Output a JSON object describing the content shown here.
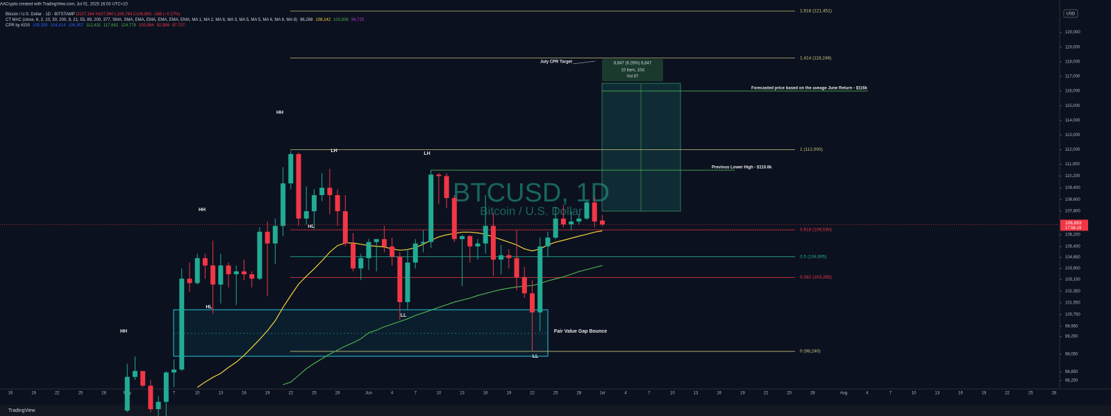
{
  "header": {
    "credit": "AACrypto created with TradingView.com, Jul 01, 2025 16:03 UTC+10",
    "symbol": "Bitcoin / U.S. Dollar · 1D · BITSTAMP",
    "ohlc": "O107,164 H107,560 L106,784 C106,893 −286 (−0.27%)",
    "ct_mac": "CT MAC (close, 6, 2, 10, 30, 200, 9, 21, 55, 89, 200, 377, SMA, SMA, EMA, EMA, EMA, EMA, EMA, MA 1, MA 2, MA 6, MA 3, MA 5, MA 5, MA 6, MA 6, MA 8)",
    "ct_mac_values": [
      {
        "text": "96,288",
        "color": "#d1d4dc"
      },
      {
        "text": "108,142",
        "color": "#f5d53b"
      },
      {
        "text": "103,836",
        "color": "#4caf50"
      },
      {
        "text": "94,725",
        "color": "#b33ad6"
      }
    ],
    "cpr": "CPR by KGS",
    "cpr_values": [
      {
        "text": "105,335",
        "color": "#2962ff"
      },
      {
        "text": "104,414",
        "color": "#2962ff"
      },
      {
        "text": "106,357",
        "color": "#2962ff"
      },
      {
        "text": "112,431",
        "color": "#4caf50"
      },
      {
        "text": "117,682",
        "color": "#4caf50"
      },
      {
        "text": "124,778",
        "color": "#4caf50"
      },
      {
        "text": "100,084",
        "color": "#f23645"
      },
      {
        "text": "92,988",
        "color": "#f23645"
      },
      {
        "text": "87,737",
        "color": "#f23645"
      }
    ],
    "currency": "USD",
    "footer": "TradingView"
  },
  "chart_data": {
    "type": "candlestick",
    "watermark": "BTCUSD, 1D",
    "watermark_sub": "Bitcoin / U.S. Dollar",
    "grid": false,
    "up_color": "#22ab94",
    "down_color": "#f23645",
    "categories": [
      "16",
      null,
      null,
      "19",
      null,
      null,
      "22",
      null,
      null,
      "25",
      null,
      null,
      "28",
      null,
      null,
      "May",
      null,
      null,
      "4",
      null,
      null,
      "7",
      null,
      null,
      "10",
      null,
      null,
      "13",
      null,
      null,
      "16",
      null,
      null,
      "19",
      null,
      null,
      "22",
      null,
      null,
      "25",
      null,
      null,
      "28",
      null,
      null,
      null,
      "Jun",
      null,
      null,
      "4",
      null,
      null,
      "7",
      null,
      null,
      "10",
      null,
      null,
      "13",
      null,
      null,
      "16",
      null,
      null,
      "19",
      null,
      null,
      "22",
      null,
      null,
      "25",
      null,
      null,
      "28",
      null,
      null,
      "Jul",
      null,
      null,
      "4",
      null,
      null,
      "7",
      null,
      null,
      "10",
      null,
      null,
      "13",
      null,
      null,
      "16",
      null,
      null,
      "19",
      null,
      null,
      "22",
      null,
      null,
      "25",
      null,
      null,
      "28",
      null,
      null,
      null,
      "Aug",
      null,
      null,
      "4",
      null,
      null,
      "7",
      null,
      null,
      "10",
      null,
      null,
      "13",
      null,
      null,
      "16",
      null,
      null,
      "19",
      null,
      null,
      "22",
      null,
      null,
      "25",
      null,
      null,
      "28"
    ],
    "open": [
      null,
      null,
      null,
      null,
      null,
      null,
      null,
      null,
      null,
      null,
      null,
      null,
      null,
      null,
      null,
      94200,
      96500,
      96900,
      95900,
      94300,
      94800,
      96800,
      97000,
      103200,
      102900,
      104600,
      104100,
      102800,
      104100,
      103500,
      103700,
      103500,
      103200,
      106400,
      105600,
      106800,
      109700,
      111700,
      107300,
      107800,
      108900,
      109400,
      108900,
      107800,
      105600,
      103900,
      104600,
      105700,
      105900,
      105400,
      104700,
      101600,
      104300,
      105600,
      105700,
      110300,
      110200,
      108700,
      105900,
      106100,
      105400,
      105600,
      106800,
      104500,
      104800,
      104600,
      103300,
      102200,
      100900,
      105400,
      106000,
      107300,
      106900,
      107100,
      107300,
      108400,
      107164,
      null,
      null,
      null,
      null,
      null,
      null,
      null,
      null,
      null,
      null,
      null,
      null,
      null,
      null,
      null,
      null,
      null,
      null,
      null,
      null,
      null,
      null,
      null,
      null,
      null,
      null,
      null,
      null,
      null,
      null,
      null,
      null,
      null,
      null,
      null,
      null,
      null,
      null,
      null,
      null,
      null,
      null,
      null,
      null,
      null,
      null,
      null,
      null,
      null,
      null,
      null,
      null,
      null,
      null,
      null,
      null,
      null,
      null
    ],
    "high": [
      null,
      null,
      null,
      null,
      null,
      null,
      null,
      null,
      null,
      null,
      null,
      null,
      null,
      null,
      null,
      97400,
      97900,
      96900,
      96300,
      95200,
      96900,
      97700,
      103900,
      104300,
      104900,
      104900,
      105800,
      104900,
      104300,
      104100,
      104500,
      103700,
      106700,
      107100,
      107300,
      110800,
      111900,
      111800,
      109500,
      109300,
      110400,
      110700,
      109300,
      108900,
      106300,
      104900,
      105900,
      105900,
      106800,
      106000,
      105000,
      105200,
      105900,
      106500,
      110600,
      110400,
      110400,
      108900,
      106200,
      106200,
      105900,
      108900,
      107700,
      105500,
      105200,
      106500,
      104000,
      103100,
      106000,
      106400,
      108100,
      108200,
      107800,
      107600,
      108500,
      108800,
      107560,
      null,
      null,
      null,
      null,
      null,
      null,
      null,
      null,
      null,
      null,
      null,
      null,
      null,
      null,
      null,
      null,
      null,
      null,
      null,
      null,
      null,
      null,
      null,
      null,
      null,
      null,
      null,
      null,
      null,
      null,
      null,
      null,
      null,
      null,
      null,
      null,
      null,
      null,
      null,
      null,
      null,
      null,
      null,
      null,
      null,
      null,
      null,
      null,
      null,
      null,
      null,
      null,
      null,
      null,
      null,
      null,
      null,
      null
    ],
    "low": [
      null,
      null,
      null,
      null,
      null,
      null,
      null,
      null,
      null,
      null,
      null,
      null,
      null,
      null,
      null,
      94100,
      96300,
      95800,
      94100,
      93500,
      93400,
      95800,
      96900,
      102300,
      102800,
      103200,
      100800,
      101500,
      102600,
      101400,
      103100,
      102600,
      103100,
      102000,
      104200,
      106100,
      109300,
      106800,
      106900,
      106600,
      108500,
      107600,
      106800,
      105400,
      103700,
      103100,
      103800,
      103700,
      105000,
      104100,
      100400,
      101100,
      103900,
      105000,
      105300,
      108300,
      108000,
      105700,
      102700,
      104300,
      104500,
      104900,
      103400,
      103500,
      103900,
      102400,
      101900,
      98300,
      99600,
      104700,
      105900,
      106700,
      106500,
      106900,
      107200,
      106700,
      106784,
      null,
      null,
      null,
      null,
      null,
      null,
      null,
      null,
      null,
      null,
      null,
      null,
      null,
      null,
      null,
      null,
      null,
      null,
      null,
      null,
      null,
      null,
      null,
      null,
      null,
      null,
      null,
      null,
      null,
      null,
      null,
      null,
      null,
      null,
      null,
      null,
      null,
      null,
      null,
      null,
      null,
      null,
      null,
      null,
      null,
      null,
      null,
      null,
      null,
      null,
      null,
      null,
      null,
      null,
      null,
      null,
      null,
      null
    ],
    "close": [
      null,
      null,
      null,
      null,
      null,
      null,
      null,
      null,
      null,
      null,
      null,
      null,
      null,
      null,
      null,
      96500,
      96900,
      95900,
      94300,
      94800,
      96800,
      97000,
      103200,
      102900,
      104600,
      104100,
      102800,
      104100,
      103500,
      103700,
      103500,
      103200,
      106400,
      105600,
      106800,
      109700,
      111700,
      107300,
      107800,
      108900,
      109400,
      108900,
      107800,
      105600,
      103900,
      104600,
      105700,
      105900,
      105400,
      104700,
      101600,
      104300,
      105600,
      105700,
      110300,
      110200,
      108700,
      105900,
      106100,
      105400,
      105600,
      106800,
      104500,
      104800,
      104600,
      103300,
      102200,
      100900,
      105400,
      106000,
      107300,
      106900,
      107100,
      107300,
      108400,
      107100,
      106893,
      null,
      null,
      null,
      null,
      null,
      null,
      null,
      null,
      null,
      null,
      null,
      null,
      null,
      null,
      null,
      null,
      null,
      null,
      null,
      null,
      null,
      null,
      null,
      null,
      null,
      null,
      null,
      null,
      null,
      null,
      null,
      null,
      null,
      null,
      null,
      null,
      null,
      null,
      null,
      null,
      null,
      null,
      null,
      null,
      null,
      null,
      null,
      null,
      null,
      null,
      null,
      null,
      null,
      null,
      null,
      null,
      null,
      null
    ],
    "lines": [
      {
        "color": "#f5d53b",
        "values": [
          null,
          null,
          null,
          null,
          null,
          null,
          null,
          null,
          null,
          null,
          null,
          null,
          null,
          null,
          null,
          null,
          null,
          null,
          null,
          null,
          null,
          null,
          null,
          null,
          95790,
          96150,
          96470,
          96740,
          97150,
          97510,
          97970,
          98510,
          99060,
          99650,
          100330,
          101240,
          102050,
          102830,
          103370,
          103870,
          104420,
          105010,
          105460,
          105640,
          105640,
          105550,
          105460,
          105410,
          105370,
          105230,
          105140,
          105190,
          105320,
          105550,
          105820,
          106050,
          106190,
          106280,
          106370,
          106370,
          106320,
          106230,
          106050,
          105870,
          105690,
          105500,
          105230,
          105100,
          105230,
          105500,
          105690,
          105820,
          105960,
          106100,
          106230,
          106370,
          106460,
          null,
          null,
          null,
          null,
          null,
          null,
          null,
          null,
          null,
          null,
          null,
          null,
          null,
          null,
          null,
          null,
          null,
          null,
          null,
          null,
          null,
          null,
          null,
          null,
          null,
          null,
          null,
          null,
          null,
          null,
          null,
          null,
          null,
          null,
          null,
          null,
          null,
          null,
          null,
          null,
          null,
          null,
          null,
          null,
          null,
          null,
          null,
          null,
          null,
          null,
          null,
          null,
          null,
          null,
          null,
          null,
          null,
          null
        ]
      },
      {
        "color": "#4caf50",
        "values": [
          null,
          null,
          null,
          null,
          null,
          null,
          null,
          null,
          null,
          null,
          null,
          null,
          null,
          null,
          null,
          null,
          null,
          null,
          null,
          null,
          null,
          null,
          null,
          null,
          null,
          null,
          null,
          null,
          null,
          null,
          null,
          null,
          null,
          null,
          null,
          95970,
          96150,
          96600,
          97060,
          97420,
          97740,
          98060,
          98330,
          98600,
          98830,
          99100,
          99510,
          99690,
          99920,
          100100,
          100280,
          100460,
          100690,
          100870,
          101050,
          101240,
          101420,
          101600,
          101740,
          101870,
          102050,
          102190,
          102330,
          102460,
          102550,
          102640,
          102690,
          102730,
          102870,
          103050,
          103190,
          103320,
          103500,
          103690,
          103820,
          103960,
          104100,
          null,
          null,
          null,
          null,
          null,
          null,
          null,
          null,
          null,
          null,
          null,
          null,
          null,
          null,
          null,
          null,
          null,
          null,
          null,
          null,
          null,
          null,
          null,
          null,
          null,
          null,
          null,
          null,
          null,
          null,
          null,
          null,
          null,
          null,
          null,
          null,
          null,
          null,
          null,
          null,
          null,
          null,
          null,
          null,
          null,
          null,
          null,
          null,
          null,
          null,
          null,
          null,
          null,
          null,
          null,
          null,
          null,
          null
        ]
      }
    ],
    "levels": [
      {
        "label": "1.618 (121,451)",
        "value": 121451,
        "color": "#c8c67e"
      },
      {
        "label": "1.414 (118,246)",
        "value": 118246,
        "color": "#c8c67e"
      },
      {
        "label": "1 (112,000)",
        "value": 112000,
        "color": "#c8c67e"
      },
      {
        "label": "0.618 (106,530)",
        "value": 106530,
        "color": "#f23645"
      },
      {
        "label": "0.5 (104,695)",
        "value": 104695,
        "color": "#22ab94"
      },
      {
        "label": "0.382 (103,285)",
        "value": 103285,
        "color": "#f23645"
      },
      {
        "label": "0 (98,240)",
        "value": 98240,
        "color": "#c8c67e"
      }
    ],
    "targets": [
      {
        "label": "Forecasted price based on the aveage June Return - $116k",
        "value": 116000
      },
      {
        "label": "Previous Lower High - $110.6k",
        "value": 110600
      }
    ],
    "last_price": {
      "value": 106893,
      "label": "106,893"
    },
    "countdown": "17:56:19",
    "ylim": [
      95680,
      121830
    ],
    "yticks": [
      {
        "value": 120000,
        "label": "120,000"
      },
      {
        "value": 119000,
        "label": "119,000"
      },
      {
        "value": 118000,
        "label": "118,000"
      },
      {
        "value": 117000,
        "label": "117,000"
      },
      {
        "value": 116000,
        "label": "116,000"
      },
      {
        "value": 115000,
        "label": "115,000"
      },
      {
        "value": 114000,
        "label": "114,000"
      },
      {
        "value": 113000,
        "label": "113,000"
      },
      {
        "value": 112000,
        "label": "112,000"
      },
      {
        "value": 111000,
        "label": "111,000"
      },
      {
        "value": 110200,
        "label": "110,200"
      },
      {
        "value": 109400,
        "label": "109,400"
      },
      {
        "value": 108600,
        "label": "108,600"
      },
      {
        "value": 107800,
        "label": "107,800"
      },
      {
        "value": 106200,
        "label": "106,200"
      },
      {
        "value": 105400,
        "label": "105,400"
      },
      {
        "value": 104650,
        "label": "104,650"
      },
      {
        "value": 103900,
        "label": "103,900"
      },
      {
        "value": 103150,
        "label": "103,150"
      },
      {
        "value": 102350,
        "label": "102,350"
      },
      {
        "value": 101550,
        "label": "101,550"
      },
      {
        "value": 100750,
        "label": "100,750"
      },
      {
        "value": 99950,
        "label": "99,950"
      },
      {
        "value": 99250,
        "label": "99,250"
      },
      {
        "value": 98050,
        "label": "98,050"
      },
      {
        "value": 96850,
        "label": "96,850"
      },
      {
        "value": 96250,
        "label": "96,250"
      }
    ],
    "swing_labels": [
      "HH",
      "HH",
      "HH",
      "LH",
      "LH",
      "HL",
      "HL",
      "LL",
      "LL"
    ],
    "cpr_note": "July CPR Target",
    "fvg_note": "Fair Value Gap Bounce",
    "measure": [
      "8,847 (8.26%) 8,847",
      "10 bars, 10d",
      "Vol 87"
    ]
  }
}
